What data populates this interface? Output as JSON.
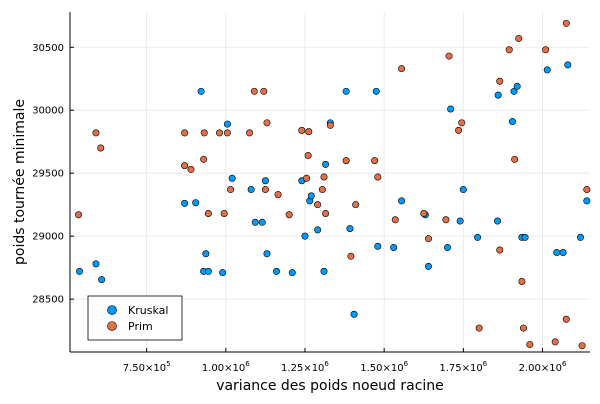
{
  "chart_data": {
    "type": "scatter",
    "xlabel": "variance des poids noeud racine",
    "ylabel": "poids tournée minimale",
    "xlim": [
      508000,
      2150000
    ],
    "ylim": [
      28080,
      30780
    ],
    "x_ticks": [
      750000,
      1000000,
      1250000,
      1500000,
      1750000,
      2000000
    ],
    "x_tick_labels": [
      {
        "mantissa": "7.50×10",
        "exp": "5"
      },
      {
        "mantissa": "1.00×10",
        "exp": "6"
      },
      {
        "mantissa": "1.25×10",
        "exp": "6"
      },
      {
        "mantissa": "1.50×10",
        "exp": "6"
      },
      {
        "mantissa": "1.75×10",
        "exp": "6"
      },
      {
        "mantissa": "2.00×10",
        "exp": "6"
      }
    ],
    "y_ticks": [
      28500,
      29000,
      29500,
      30000,
      30500
    ],
    "y_tick_labels": [
      "28500",
      "29000",
      "29500",
      "30000",
      "30500"
    ],
    "grid": true,
    "legend_position": "bottom-left",
    "series": [
      {
        "name": "Kruskal",
        "color": "#009AFA",
        "points": [
          [
            538000,
            28720
          ],
          [
            590000,
            28780
          ],
          [
            608000,
            28655
          ],
          [
            870000,
            29260
          ],
          [
            905000,
            29265
          ],
          [
            922000,
            30150
          ],
          [
            930000,
            28720
          ],
          [
            937000,
            28860
          ],
          [
            945000,
            28720
          ],
          [
            990000,
            28710
          ],
          [
            1005000,
            29890
          ],
          [
            1020000,
            29460
          ],
          [
            1080000,
            29370
          ],
          [
            1093000,
            29110
          ],
          [
            1115000,
            29110
          ],
          [
            1125000,
            29440
          ],
          [
            1130000,
            28860
          ],
          [
            1160000,
            28720
          ],
          [
            1210000,
            28710
          ],
          [
            1240000,
            29440
          ],
          [
            1250000,
            29000
          ],
          [
            1265000,
            29280
          ],
          [
            1270000,
            29320
          ],
          [
            1290000,
            29050
          ],
          [
            1310000,
            28720
          ],
          [
            1315000,
            29570
          ],
          [
            1330000,
            29900
          ],
          [
            1380000,
            30150
          ],
          [
            1392000,
            29060
          ],
          [
            1405000,
            28380
          ],
          [
            1475000,
            30150
          ],
          [
            1480000,
            28920
          ],
          [
            1530000,
            28910
          ],
          [
            1555000,
            29280
          ],
          [
            1630000,
            29170
          ],
          [
            1640000,
            28760
          ],
          [
            1700000,
            28910
          ],
          [
            1710000,
            30010
          ],
          [
            1750000,
            29370
          ],
          [
            1740000,
            29120
          ],
          [
            1795000,
            28990
          ],
          [
            1860000,
            30120
          ],
          [
            1858000,
            29120
          ],
          [
            1905000,
            29910
          ],
          [
            1910000,
            30150
          ],
          [
            1920000,
            30190
          ],
          [
            1935000,
            28990
          ],
          [
            1945000,
            28990
          ],
          [
            2015000,
            30320
          ],
          [
            2045000,
            28870
          ],
          [
            2065000,
            28870
          ],
          [
            2080000,
            30360
          ],
          [
            2120000,
            28990
          ],
          [
            2140000,
            29280
          ]
        ]
      },
      {
        "name": "Prim",
        "color": "#E26F46",
        "points": [
          [
            535000,
            29170
          ],
          [
            590000,
            29820
          ],
          [
            605000,
            29700
          ],
          [
            870000,
            29820
          ],
          [
            870000,
            29560
          ],
          [
            890000,
            29530
          ],
          [
            930000,
            29610
          ],
          [
            932000,
            29820
          ],
          [
            945000,
            29180
          ],
          [
            980000,
            29820
          ],
          [
            995000,
            29180
          ],
          [
            1005000,
            29820
          ],
          [
            1015000,
            29370
          ],
          [
            1075000,
            29820
          ],
          [
            1090000,
            30150
          ],
          [
            1120000,
            30150
          ],
          [
            1125000,
            29370
          ],
          [
            1130000,
            29900
          ],
          [
            1165000,
            29330
          ],
          [
            1200000,
            29170
          ],
          [
            1240000,
            29840
          ],
          [
            1255000,
            29460
          ],
          [
            1260000,
            29640
          ],
          [
            1262000,
            29830
          ],
          [
            1290000,
            29250
          ],
          [
            1305000,
            29370
          ],
          [
            1315000,
            29180
          ],
          [
            1310000,
            29470
          ],
          [
            1330000,
            29880
          ],
          [
            1380000,
            29600
          ],
          [
            1395000,
            28840
          ],
          [
            1410000,
            29250
          ],
          [
            1470000,
            29600
          ],
          [
            1480000,
            29470
          ],
          [
            1535000,
            29130
          ],
          [
            1555000,
            30330
          ],
          [
            1625000,
            29180
          ],
          [
            1640000,
            28980
          ],
          [
            1695000,
            29130
          ],
          [
            1705000,
            30430
          ],
          [
            1735000,
            29840
          ],
          [
            1745000,
            29900
          ],
          [
            1800000,
            28270
          ],
          [
            1865000,
            30230
          ],
          [
            1865000,
            28890
          ],
          [
            1895000,
            30480
          ],
          [
            1912000,
            29610
          ],
          [
            1925000,
            30570
          ],
          [
            1935000,
            28640
          ],
          [
            1940000,
            28270
          ],
          [
            1960000,
            28140
          ],
          [
            2010000,
            30480
          ],
          [
            2040000,
            28160
          ],
          [
            2075000,
            30690
          ],
          [
            2075000,
            28340
          ],
          [
            2125000,
            28130
          ],
          [
            2140000,
            29370
          ]
        ]
      }
    ]
  }
}
